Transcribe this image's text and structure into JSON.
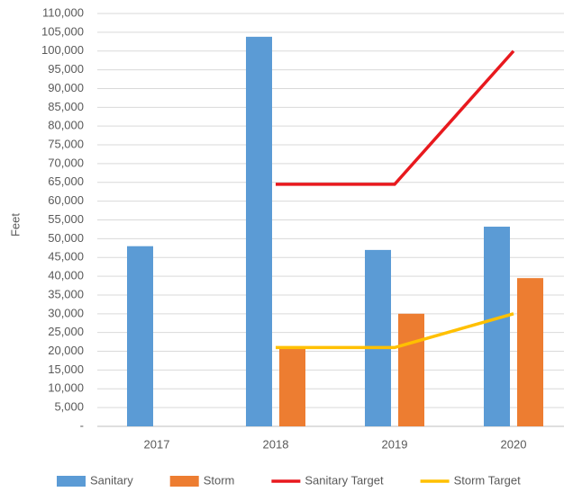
{
  "chart_data": {
    "type": "bar",
    "ylabel": "Feet",
    "categories": [
      "2017",
      "2018",
      "2019",
      "2020"
    ],
    "series": [
      {
        "name": "Sanitary",
        "type": "bar",
        "color": "#5b9bd5",
        "values": [
          48000,
          103800,
          47000,
          53200
        ]
      },
      {
        "name": "Storm",
        "type": "bar",
        "color": "#ed7d31",
        "values": [
          null,
          21000,
          30000,
          39500
        ]
      },
      {
        "name": "Sanitary Target",
        "type": "line",
        "color": "#e8191e",
        "values": [
          null,
          64500,
          64500,
          100000
        ]
      },
      {
        "name": "Storm Target",
        "type": "line",
        "color": "#ffc000",
        "values": [
          null,
          21000,
          21000,
          30000
        ]
      }
    ],
    "ylim": [
      0,
      110000
    ],
    "yticks": [
      {
        "value": 0,
        "label": "-"
      },
      {
        "value": 5000,
        "label": "5,000"
      },
      {
        "value": 10000,
        "label": "10,000"
      },
      {
        "value": 15000,
        "label": "15,000"
      },
      {
        "value": 20000,
        "label": "20,000"
      },
      {
        "value": 25000,
        "label": "25,000"
      },
      {
        "value": 30000,
        "label": "30,000"
      },
      {
        "value": 35000,
        "label": "35,000"
      },
      {
        "value": 40000,
        "label": "40,000"
      },
      {
        "value": 45000,
        "label": "45,000"
      },
      {
        "value": 50000,
        "label": "50,000"
      },
      {
        "value": 55000,
        "label": "55,000"
      },
      {
        "value": 60000,
        "label": "60,000"
      },
      {
        "value": 65000,
        "label": "65,000"
      },
      {
        "value": 70000,
        "label": "70,000"
      },
      {
        "value": 75000,
        "label": "75,000"
      },
      {
        "value": 80000,
        "label": "80,000"
      },
      {
        "value": 85000,
        "label": "85,000"
      },
      {
        "value": 90000,
        "label": "90,000"
      },
      {
        "value": 95000,
        "label": "95,000"
      },
      {
        "value": 100000,
        "label": "100,000"
      },
      {
        "value": 105000,
        "label": "105,000"
      },
      {
        "value": 110000,
        "label": "110,000"
      }
    ],
    "grid": true,
    "legend": "bottom"
  }
}
